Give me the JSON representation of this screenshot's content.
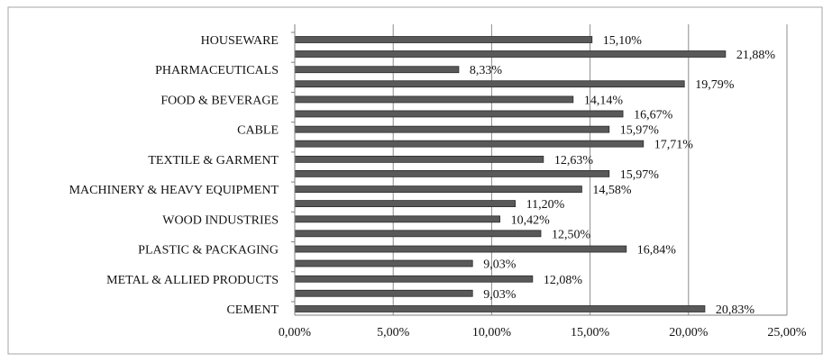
{
  "chart_data": {
    "type": "bar",
    "orientation": "horizontal",
    "categories": [
      "HOUSEWARE",
      "PHARMACEUTICALS",
      "FOOD & BEVERAGE",
      "CABLE",
      "TEXTILE & GARMENT",
      "MACHINERY & HEAVY EQUIPMENT",
      "WOOD INDUSTRIES",
      "PLASTIC & PACKAGING",
      "METAL & ALLIED PRODUCTS",
      "CEMENT"
    ],
    "bars": [
      {
        "category_index": 0,
        "value": 15.1,
        "label": "15,10%"
      },
      {
        "category_index": 0,
        "value": 21.88,
        "label": "21,88%"
      },
      {
        "category_index": 1,
        "value": 8.33,
        "label": "8,33%"
      },
      {
        "category_index": 1,
        "value": 19.79,
        "label": "19,79%"
      },
      {
        "category_index": 2,
        "value": 14.14,
        "label": "14,14%"
      },
      {
        "category_index": 2,
        "value": 16.67,
        "label": "16,67%"
      },
      {
        "category_index": 3,
        "value": 15.97,
        "label": "15,97%"
      },
      {
        "category_index": 3,
        "value": 17.71,
        "label": "17,71%"
      },
      {
        "category_index": 4,
        "value": 12.63,
        "label": "12,63%"
      },
      {
        "category_index": 4,
        "value": 15.97,
        "label": "15,97%"
      },
      {
        "category_index": 5,
        "value": 14.58,
        "label": "14,58%"
      },
      {
        "category_index": 5,
        "value": 11.2,
        "label": "11,20%"
      },
      {
        "category_index": 6,
        "value": 10.42,
        "label": "10,42%"
      },
      {
        "category_index": 6,
        "value": 12.5,
        "label": "12,50%"
      },
      {
        "category_index": 7,
        "value": 16.84,
        "label": "16,84%"
      },
      {
        "category_index": 7,
        "value": 9.03,
        "label": "9,03%"
      },
      {
        "category_index": 8,
        "value": 12.08,
        "label": "12,08%"
      },
      {
        "category_index": 8,
        "value": 9.03,
        "label": "9,03%"
      },
      {
        "category_index": 9,
        "value": 20.83,
        "label": "20,83%"
      }
    ],
    "x_ticks": [
      "0,00%",
      "5,00%",
      "10,00%",
      "15,00%",
      "20,00%",
      "25,00%"
    ],
    "x_tick_values": [
      0,
      5,
      10,
      15,
      20,
      25
    ],
    "xlim": [
      0,
      25
    ],
    "grid": true,
    "legend": "none",
    "title": "",
    "xlabel": "",
    "ylabel": "",
    "colors": {
      "bar_fill": "#595959",
      "bar_stroke": "#2b2b2b",
      "grid": "#8c8c8c",
      "axis": "#7f7f7f",
      "frame": "#a6a6a6",
      "text": "#111111"
    }
  }
}
